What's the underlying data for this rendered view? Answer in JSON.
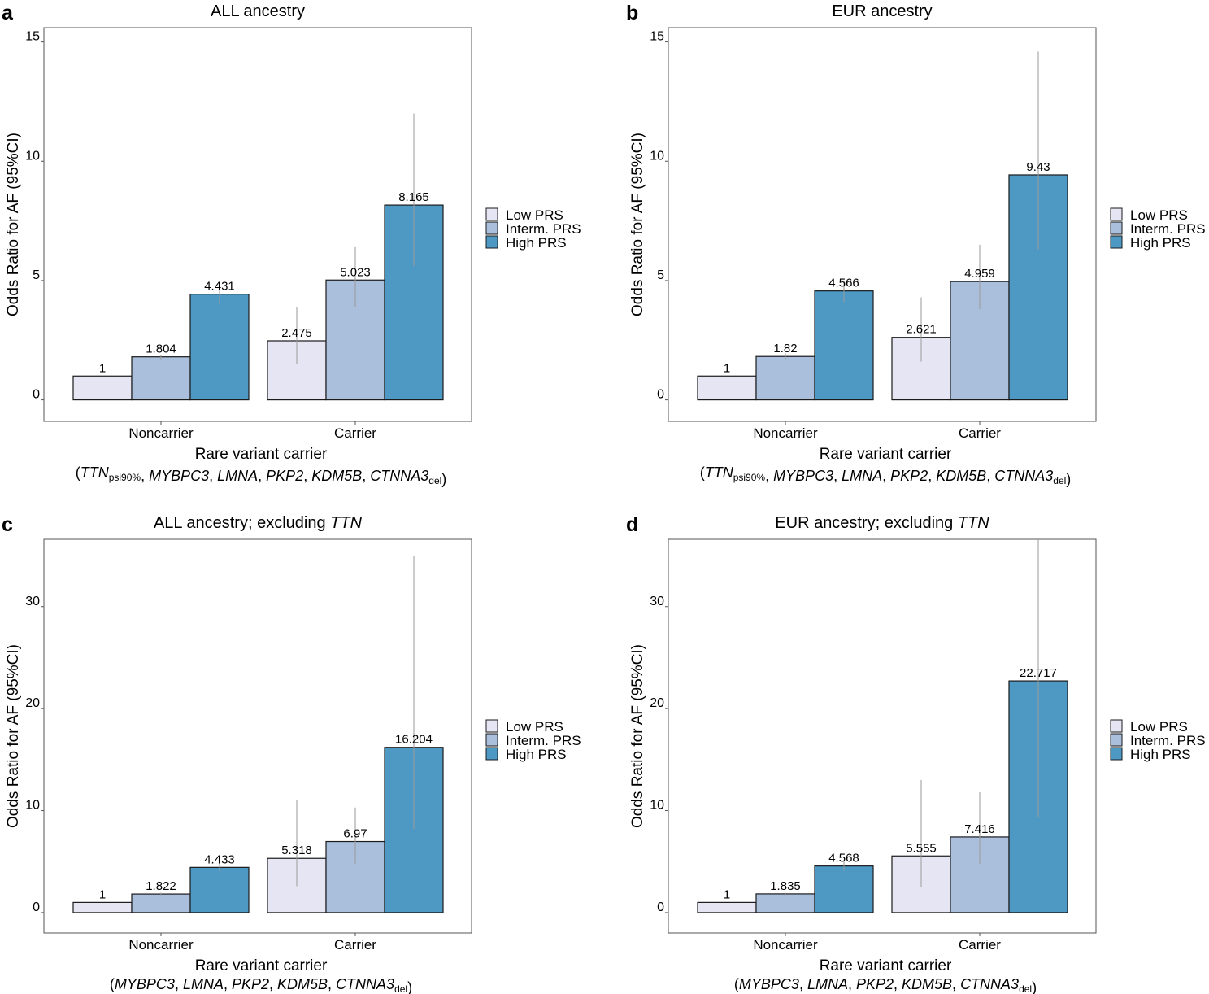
{
  "colors": {
    "low": "#e6e5f3",
    "interm": "#a9bfdb",
    "high": "#4d99c4",
    "ci": "#9a9a9a",
    "border": "#555555"
  },
  "chart_data": [
    {
      "panel": "a",
      "type": "bar",
      "title": "ALL ancestry",
      "title_italic": "",
      "ylabel": "Odds Ratio for AF (95%CI)",
      "xlabel": "Rare variant carrier",
      "subtitle_parts": [
        {
          "t": "(",
          "i": false,
          "sub": false
        },
        {
          "t": "TTN",
          "i": true,
          "sub": false
        },
        {
          "t": "psi90%",
          "i": false,
          "sub": true
        },
        {
          "t": ", ",
          "i": false,
          "sub": false
        },
        {
          "t": "MYBPC3",
          "i": true,
          "sub": false
        },
        {
          "t": ", ",
          "i": false,
          "sub": false
        },
        {
          "t": "LMNA",
          "i": true,
          "sub": false
        },
        {
          "t": ", ",
          "i": false,
          "sub": false
        },
        {
          "t": "PKP2",
          "i": true,
          "sub": false
        },
        {
          "t": ", ",
          "i": false,
          "sub": false
        },
        {
          "t": "KDM5B",
          "i": true,
          "sub": false
        },
        {
          "t": ", ",
          "i": false,
          "sub": false
        },
        {
          "t": "CTNNA3",
          "i": true,
          "sub": false
        },
        {
          "t": "del",
          "i": false,
          "sub": true
        },
        {
          "t": ")",
          "i": false,
          "sub": false
        }
      ],
      "categories": [
        "Noncarrier",
        "Carrier"
      ],
      "ylim": [
        -0.9,
        15.6
      ],
      "yticks": [
        0,
        5,
        10,
        15
      ],
      "series": [
        {
          "name": "Low PRS",
          "values": [
            1,
            2.475
          ],
          "labels": [
            "1",
            "2.475"
          ],
          "ci": [
            null,
            [
              1.5,
              3.9
            ]
          ]
        },
        {
          "name": "Interm. PRS",
          "values": [
            1.804,
            5.023
          ],
          "labels": [
            "1.804",
            "5.023"
          ],
          "ci": [
            [
              1.7,
              1.9
            ],
            [
              3.9,
              6.4
            ]
          ]
        },
        {
          "name": "High PRS",
          "values": [
            4.431,
            8.165
          ],
          "labels": [
            "4.431",
            "8.165"
          ],
          "ci": [
            [
              4.0,
              4.9
            ],
            [
              5.6,
              12.0
            ]
          ]
        }
      ]
    },
    {
      "panel": "b",
      "type": "bar",
      "title": "EUR ancestry",
      "title_italic": "",
      "ylabel": "Odds Ratio for AF (95%CI)",
      "xlabel": "Rare variant carrier",
      "subtitle_parts": [
        {
          "t": "(",
          "i": false,
          "sub": false
        },
        {
          "t": "TTN",
          "i": true,
          "sub": false
        },
        {
          "t": "psi90%",
          "i": false,
          "sub": true
        },
        {
          "t": ", ",
          "i": false,
          "sub": false
        },
        {
          "t": "MYBPC3",
          "i": true,
          "sub": false
        },
        {
          "t": ", ",
          "i": false,
          "sub": false
        },
        {
          "t": "LMNA",
          "i": true,
          "sub": false
        },
        {
          "t": ", ",
          "i": false,
          "sub": false
        },
        {
          "t": "PKP2",
          "i": true,
          "sub": false
        },
        {
          "t": ", ",
          "i": false,
          "sub": false
        },
        {
          "t": "KDM5B",
          "i": true,
          "sub": false
        },
        {
          "t": ", ",
          "i": false,
          "sub": false
        },
        {
          "t": "CTNNA3",
          "i": true,
          "sub": false
        },
        {
          "t": "del",
          "i": false,
          "sub": true
        },
        {
          "t": ")",
          "i": false,
          "sub": false
        }
      ],
      "categories": [
        "Noncarrier",
        "Carrier"
      ],
      "ylim": [
        -0.9,
        15.6
      ],
      "yticks": [
        0,
        5,
        10,
        15
      ],
      "series": [
        {
          "name": "Low PRS",
          "values": [
            1,
            2.621
          ],
          "labels": [
            "1",
            "2.621"
          ],
          "ci": [
            null,
            [
              1.6,
              4.3
            ]
          ]
        },
        {
          "name": "Interm. PRS",
          "values": [
            1.82,
            4.959
          ],
          "labels": [
            "1.82",
            "4.959"
          ],
          "ci": [
            [
              1.7,
              1.95
            ],
            [
              3.8,
              6.5
            ]
          ]
        },
        {
          "name": "High PRS",
          "values": [
            4.566,
            9.43
          ],
          "labels": [
            "4.566",
            "9.43"
          ],
          "ci": [
            [
              4.1,
              5.0
            ],
            [
              6.3,
              14.6
            ]
          ]
        }
      ]
    },
    {
      "panel": "c",
      "type": "bar",
      "title": "ALL ancestry; excluding ",
      "title_italic": "TTN",
      "ylabel": "Odds Ratio for AF (95%CI)",
      "xlabel": "Rare variant carrier",
      "subtitle_parts": [
        {
          "t": "(",
          "i": false,
          "sub": false
        },
        {
          "t": "MYBPC3",
          "i": true,
          "sub": false
        },
        {
          "t": ", ",
          "i": false,
          "sub": false
        },
        {
          "t": "LMNA",
          "i": true,
          "sub": false
        },
        {
          "t": ", ",
          "i": false,
          "sub": false
        },
        {
          "t": "PKP2",
          "i": true,
          "sub": false
        },
        {
          "t": ", ",
          "i": false,
          "sub": false
        },
        {
          "t": "KDM5B",
          "i": true,
          "sub": false
        },
        {
          "t": ", ",
          "i": false,
          "sub": false
        },
        {
          "t": "CTNNA3",
          "i": true,
          "sub": false
        },
        {
          "t": "del",
          "i": false,
          "sub": true
        },
        {
          "t": ")",
          "i": false,
          "sub": false
        }
      ],
      "categories": [
        "Noncarrier",
        "Carrier"
      ],
      "ylim": [
        -2.0,
        36.6
      ],
      "yticks": [
        0,
        10,
        20,
        30
      ],
      "series": [
        {
          "name": "Low PRS",
          "values": [
            1,
            5.318
          ],
          "labels": [
            "1",
            "5.318"
          ],
          "ci": [
            null,
            [
              2.6,
              11.0
            ]
          ]
        },
        {
          "name": "Interm. PRS",
          "values": [
            1.822,
            6.97
          ],
          "labels": [
            "1.822",
            "6.97"
          ],
          "ci": [
            [
              1.7,
              1.95
            ],
            [
              4.8,
              10.3
            ]
          ]
        },
        {
          "name": "High PRS",
          "values": [
            4.433,
            16.204
          ],
          "labels": [
            "4.433",
            "16.204"
          ],
          "ci": [
            [
              4.0,
              4.9
            ],
            [
              8.2,
              35.0
            ]
          ]
        }
      ]
    },
    {
      "panel": "d",
      "type": "bar",
      "title": "EUR ancestry; excluding ",
      "title_italic": "TTN",
      "ylabel": "Odds Ratio for AF (95%CI)",
      "xlabel": "Rare variant carrier",
      "subtitle_parts": [
        {
          "t": "(",
          "i": false,
          "sub": false
        },
        {
          "t": "MYBPC3",
          "i": true,
          "sub": false
        },
        {
          "t": ", ",
          "i": false,
          "sub": false
        },
        {
          "t": "LMNA",
          "i": true,
          "sub": false
        },
        {
          "t": ", ",
          "i": false,
          "sub": false
        },
        {
          "t": "PKP2",
          "i": true,
          "sub": false
        },
        {
          "t": ", ",
          "i": false,
          "sub": false
        },
        {
          "t": "KDM5B",
          "i": true,
          "sub": false
        },
        {
          "t": ", ",
          "i": false,
          "sub": false
        },
        {
          "t": "CTNNA3",
          "i": true,
          "sub": false
        },
        {
          "t": "del",
          "i": false,
          "sub": true
        },
        {
          "t": ")",
          "i": false,
          "sub": false
        }
      ],
      "categories": [
        "Noncarrier",
        "Carrier"
      ],
      "ylim": [
        -2.0,
        36.6
      ],
      "yticks": [
        0,
        10,
        20,
        30
      ],
      "series": [
        {
          "name": "Low PRS",
          "values": [
            1,
            5.555
          ],
          "labels": [
            "1",
            "5.555"
          ],
          "ci": [
            null,
            [
              2.5,
              13.0
            ]
          ]
        },
        {
          "name": "Interm. PRS",
          "values": [
            1.835,
            7.416
          ],
          "labels": [
            "1.835",
            "7.416"
          ],
          "ci": [
            [
              1.7,
              1.95
            ],
            [
              4.8,
              11.8
            ]
          ]
        },
        {
          "name": "High PRS",
          "values": [
            4.568,
            22.717
          ],
          "labels": [
            "4.568",
            "22.717"
          ],
          "ci": [
            [
              4.1,
              5.0
            ],
            [
              9.3,
              38.0
            ]
          ]
        }
      ]
    }
  ]
}
